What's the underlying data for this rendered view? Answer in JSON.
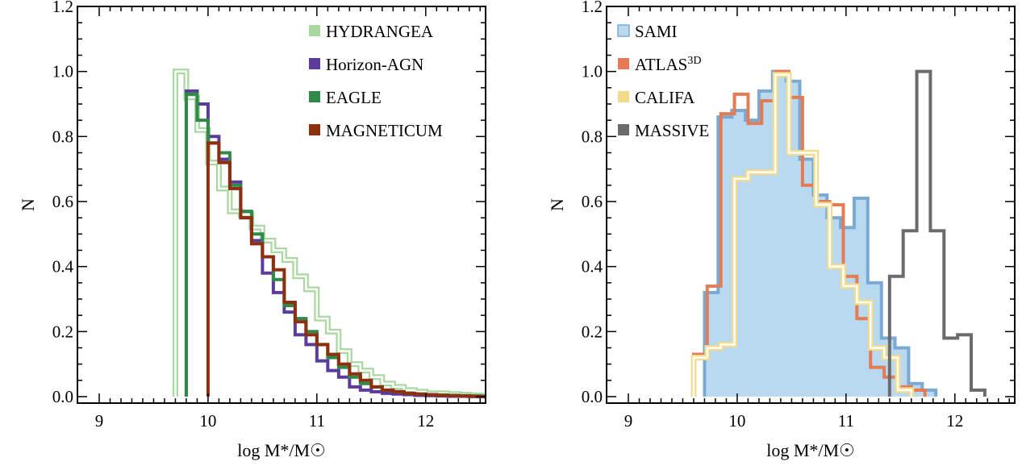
{
  "chart_data": [
    {
      "type": "step-histogram",
      "panel": "left",
      "xlabel": "log M*/M☉",
      "ylabel": "N",
      "xlim": [
        8.8,
        12.55
      ],
      "ylim": [
        -0.02,
        1.2
      ],
      "xticks": [
        "9",
        "10",
        "11",
        "12"
      ],
      "xtick_values": [
        9,
        10,
        11,
        12
      ],
      "yticks": [
        "0.0",
        "0.2",
        "0.4",
        "0.6",
        "0.8",
        "1.0",
        "1.2"
      ],
      "ytick_values": [
        0,
        0.2,
        0.4,
        0.6,
        0.8,
        1.0,
        1.2
      ],
      "legend_position": "top-right",
      "bin_width": 0.1,
      "series": [
        {
          "name": "HYDRANGEA",
          "color": "#a9d8a0",
          "style": "double",
          "start": 9.7,
          "values": [
            1.0,
            0.92,
            0.82,
            0.72,
            0.64,
            0.57,
            0.56,
            0.52,
            0.48,
            0.45,
            0.42,
            0.37,
            0.33,
            0.24,
            0.2,
            0.14,
            0.1,
            0.08,
            0.06,
            0.04,
            0.03,
            0.02,
            0.015,
            0.01,
            0.01,
            0.008,
            0.006,
            0.004,
            0.003
          ]
        },
        {
          "name": "Horizon-AGN",
          "color": "#5b3b9b",
          "style": "solid",
          "start": 9.8,
          "values": [
            0.94,
            0.9,
            0.8,
            0.73,
            0.66,
            0.55,
            0.48,
            0.38,
            0.32,
            0.26,
            0.19,
            0.16,
            0.11,
            0.08,
            0.06,
            0.03,
            0.02,
            0.015,
            0.01,
            0.008,
            0.006,
            0.004,
            0.003,
            0.002,
            0.001,
            0.001,
            0.0,
            0.0
          ]
        },
        {
          "name": "EAGLE",
          "color": "#2f8a4a",
          "style": "solid",
          "start": 9.8,
          "values": [
            0.93,
            0.85,
            0.78,
            0.75,
            0.65,
            0.57,
            0.5,
            0.43,
            0.36,
            0.28,
            0.24,
            0.2,
            0.16,
            0.12,
            0.09,
            0.06,
            0.04,
            0.03,
            0.02,
            0.015,
            0.01,
            0.008,
            0.006,
            0.005,
            0.004,
            0.003,
            0.002,
            0.001
          ]
        },
        {
          "name": "MAGNETICUM",
          "color": "#8e2f10",
          "style": "solid",
          "start": 10.0,
          "values": [
            0.78,
            0.72,
            0.64,
            0.55,
            0.47,
            0.43,
            0.39,
            0.29,
            0.23,
            0.19,
            0.16,
            0.13,
            0.1,
            0.07,
            0.05,
            0.03,
            0.02,
            0.015,
            0.01,
            0.008,
            0.006,
            0.004,
            0.003,
            0.002,
            0.001,
            0.0
          ]
        }
      ]
    },
    {
      "type": "step-histogram",
      "panel": "right",
      "xlabel": "log M*/M☉",
      "ylabel": "N",
      "xlim": [
        8.8,
        12.55
      ],
      "ylim": [
        -0.02,
        1.2
      ],
      "xticks": [
        "9",
        "10",
        "11",
        "12"
      ],
      "xtick_values": [
        9,
        10,
        11,
        12
      ],
      "yticks": [
        "0.0",
        "0.2",
        "0.4",
        "0.6",
        "0.8",
        "1.0",
        "1.2"
      ],
      "ytick_values": [
        0,
        0.2,
        0.4,
        0.6,
        0.8,
        1.0,
        1.2
      ],
      "legend_position": "top-left",
      "bin_width": 0.125,
      "series": [
        {
          "name": "SAMI",
          "color": "#7aaad3",
          "fill": "#b8d9f0",
          "style": "filled",
          "start": 9.7,
          "values": [
            0.32,
            0.86,
            0.88,
            0.85,
            0.94,
            1.0,
            0.97,
            0.73,
            0.62,
            0.55,
            0.52,
            0.61,
            0.35,
            0.18,
            0.15,
            0.04,
            0.02
          ]
        },
        {
          "name": "ATLAS",
          "superscript": "3D",
          "color": "#e47b55",
          "style": "solid",
          "start": 9.6,
          "values": [
            0.13,
            0.34,
            0.87,
            0.93,
            0.84,
            0.91,
            1.0,
            0.92,
            0.65,
            0.6,
            0.59,
            0.37,
            0.24,
            0.09,
            0.06,
            0.03,
            0.02
          ]
        },
        {
          "name": "CALIFA",
          "color": "#f2dc8c",
          "style": "double",
          "start": 9.6,
          "values": [
            0.12,
            0.15,
            0.16,
            0.67,
            0.69,
            0.69,
            0.99,
            0.75,
            0.75,
            0.59,
            0.4,
            0.34,
            0.29,
            0.15,
            0.12,
            0.02
          ]
        },
        {
          "name": "MASSIVE",
          "color": "#6b6b6b",
          "style": "solid",
          "start": 11.4,
          "values": [
            0.37,
            0.51,
            1.0,
            0.51,
            0.18,
            0.19,
            0.02
          ]
        }
      ]
    }
  ]
}
